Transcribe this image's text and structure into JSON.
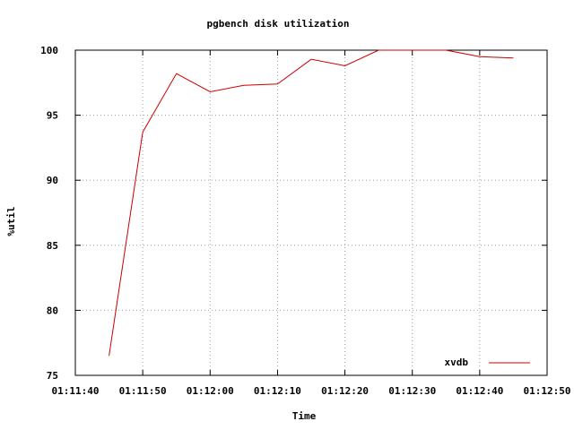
{
  "chart_data": {
    "type": "line",
    "title": "pgbench disk utilization",
    "xlabel": "Time",
    "ylabel": "%util",
    "xlim": [
      "01:11:40",
      "01:12:50"
    ],
    "ylim": [
      75,
      100
    ],
    "x_ticks": [
      "01:11:40",
      "01:11:50",
      "01:12:00",
      "01:12:10",
      "01:12:20",
      "01:12:30",
      "01:12:40",
      "01:12:50"
    ],
    "y_ticks": [
      75,
      80,
      85,
      90,
      95,
      100
    ],
    "grid": true,
    "legend_position": "bottom-right",
    "series": [
      {
        "name": "xvdb",
        "color": "#cc0000",
        "x": [
          "01:11:45",
          "01:11:50",
          "01:11:55",
          "01:12:00",
          "01:12:05",
          "01:12:10",
          "01:12:15",
          "01:12:20",
          "01:12:25",
          "01:12:30",
          "01:12:35",
          "01:12:40",
          "01:12:45"
        ],
        "y": [
          76.5,
          93.7,
          98.2,
          96.8,
          97.3,
          97.4,
          99.3,
          98.8,
          100,
          100,
          100,
          99.5,
          99.4
        ]
      }
    ]
  }
}
